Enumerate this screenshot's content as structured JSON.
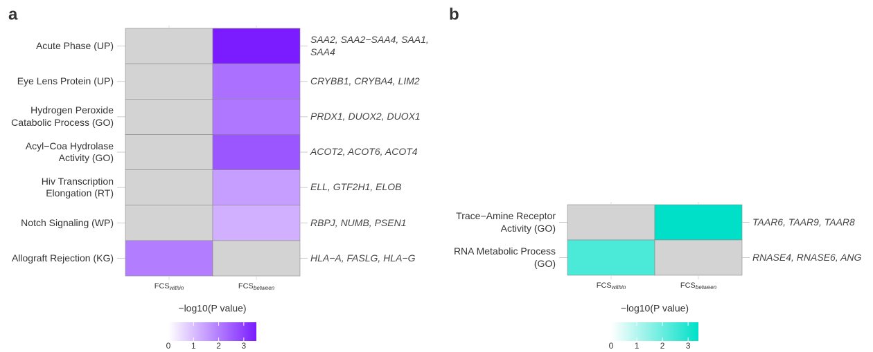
{
  "chart_data": [
    {
      "type": "heatmap",
      "panel_label": "a",
      "x_categories": [
        {
          "label": "FCS",
          "subscript": "within"
        },
        {
          "label": "FCS",
          "subscript": "between"
        }
      ],
      "categories": [
        "Acute Phase (UP)",
        "Eye Lens Protein (UP)",
        "Hydrogen Peroxide Catabolic Process (GO)",
        "Acyl−Coa Hydrolase Activity (GO)",
        "Hiv Transcription Elongation (RT)",
        "Notch Signaling (WP)",
        "Allograft Rejection (KG)"
      ],
      "values": [
        [
          null,
          3.5
        ],
        [
          null,
          2.2
        ],
        [
          null,
          2.1
        ],
        [
          null,
          2.6
        ],
        [
          null,
          1.5
        ],
        [
          null,
          1.2
        ],
        [
          2.0,
          null
        ]
      ],
      "annotations": [
        "SAA2, SAA2−SAA4, SAA1, SAA4",
        "CRYBB1, CRYBA4, LIM2",
        "PRDX1, DUOX2, DUOX1",
        "ACOT2, ACOT6, ACOT4",
        "ELL, GTF2H1, ELOB",
        "RBPJ, NUMB, PSEN1",
        "HLA−A, FASLG, HLA−G"
      ],
      "color": "#7a1cff",
      "na_color": "#d3d3d3",
      "colorbar_title": "−log10(P value)",
      "clim": [
        0,
        3.5
      ],
      "cticks": [
        0,
        1,
        2,
        3
      ]
    },
    {
      "type": "heatmap",
      "panel_label": "b",
      "x_categories": [
        {
          "label": "FCS",
          "subscript": "within"
        },
        {
          "label": "FCS",
          "subscript": "between"
        }
      ],
      "categories": [
        "Trace−Amine Receptor Activity (GO)",
        "RNA Metabolic Process (GO)"
      ],
      "values": [
        [
          null,
          3.4
        ],
        [
          2.4,
          null
        ]
      ],
      "annotations": [
        "TAAR6, TAAR9, TAAR8",
        "RNASE4, RNASE6, ANG"
      ],
      "color": "#00e0c8",
      "na_color": "#d3d3d3",
      "colorbar_title": "−log10(P value)",
      "clim": [
        0,
        3.4
      ],
      "cticks": [
        0,
        1,
        2,
        3
      ]
    }
  ]
}
